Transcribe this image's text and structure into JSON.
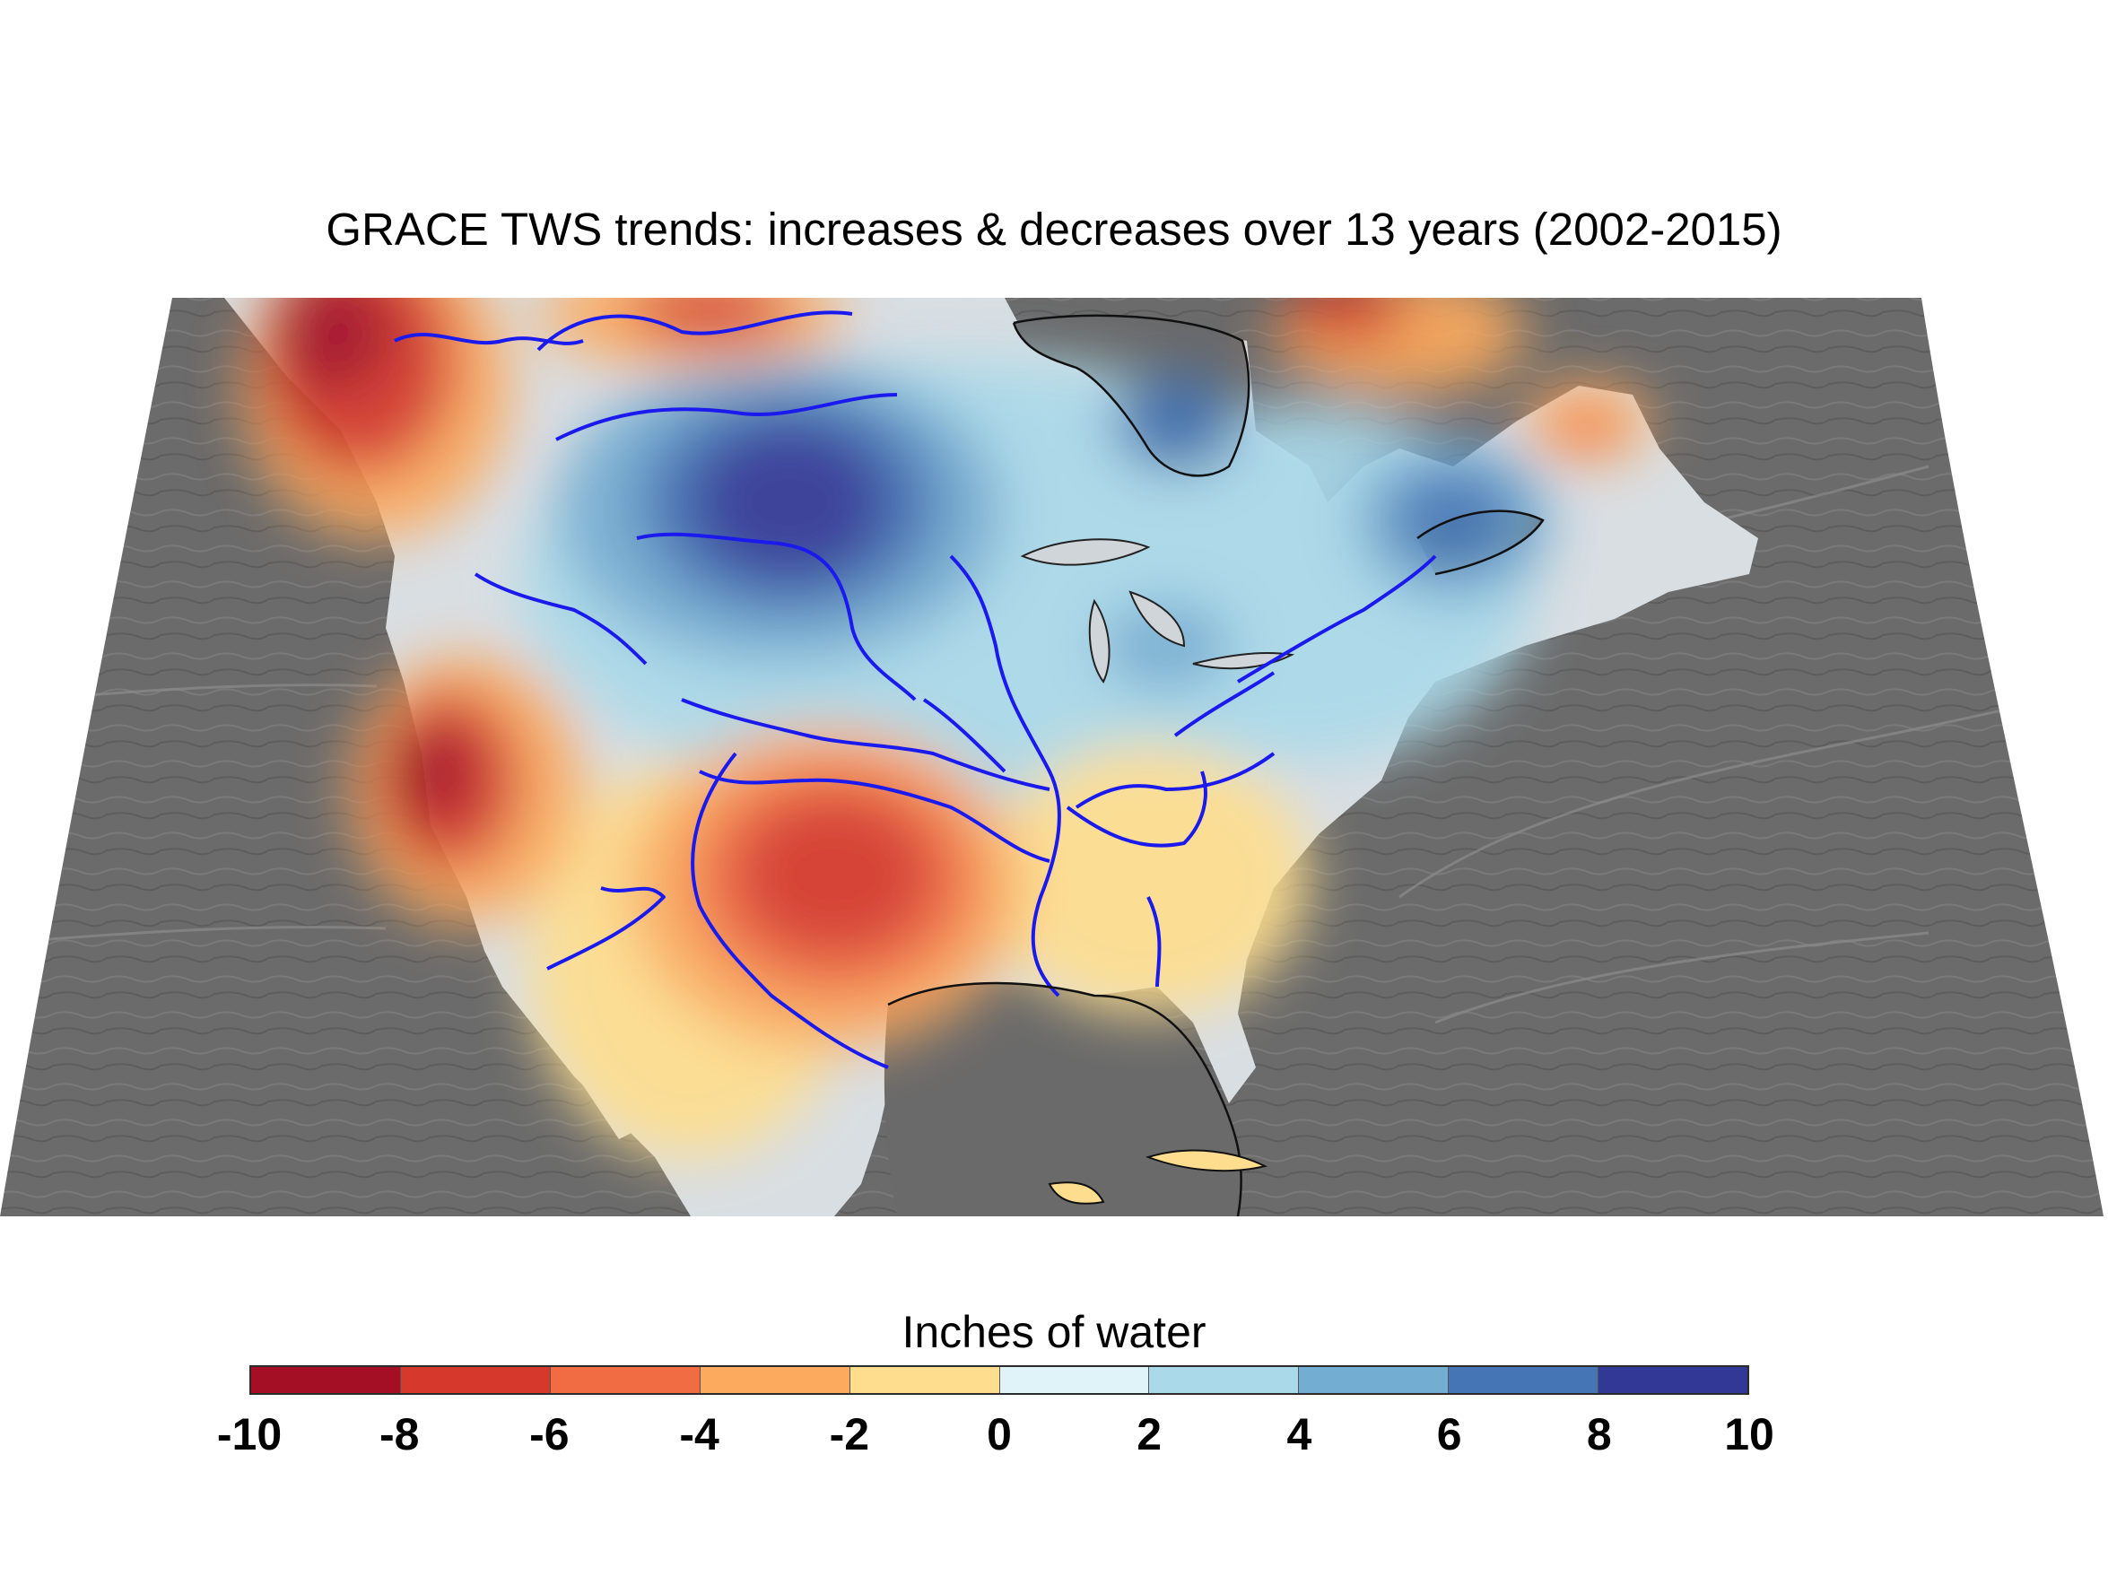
{
  "title": "GRACE TWS trends: increases & decreases over 13 years (2002-2015)",
  "legend": {
    "title": "Inches of water",
    "tick_labels": [
      "-10",
      "-8",
      "-6",
      "-4",
      "-2",
      "0",
      "2",
      "4",
      "6",
      "8",
      "10"
    ],
    "bins": [
      {
        "from": -10,
        "to": -8,
        "color": "#a50f26"
      },
      {
        "from": -8,
        "to": -6,
        "color": "#d6392b"
      },
      {
        "from": -6,
        "to": -4,
        "color": "#f26c43"
      },
      {
        "from": -4,
        "to": -2,
        "color": "#fcaa5e"
      },
      {
        "from": -2,
        "to": 0,
        "color": "#fede8e"
      },
      {
        "from": 0,
        "to": 2,
        "color": "#e0f3f8"
      },
      {
        "from": 2,
        "to": 4,
        "color": "#aad9e9"
      },
      {
        "from": 4,
        "to": 6,
        "color": "#74add2"
      },
      {
        "from": 6,
        "to": 8,
        "color": "#4575b5"
      },
      {
        "from": 8,
        "to": 10,
        "color": "#313896"
      }
    ]
  },
  "map": {
    "region": "North America",
    "background_relief_color": "#6d6d6d",
    "river_color": "#1a1aee",
    "anomalies": [
      {
        "area": "Pacific Northwest / British Columbia",
        "trend": "decrease",
        "inches": -10
      },
      {
        "area": "California",
        "trend": "decrease",
        "inches": -10
      },
      {
        "area": "Texas / Oklahoma",
        "trend": "decrease",
        "inches": -8
      },
      {
        "area": "Northern Great Plains",
        "trend": "increase",
        "inches": 10
      },
      {
        "area": "Hudson Bay west",
        "trend": "increase",
        "inches": 6
      },
      {
        "area": "Quebec / St. Lawrence",
        "trend": "increase",
        "inches": 6
      },
      {
        "area": "Great Lakes",
        "trend": "increase",
        "inches": 4
      },
      {
        "area": "Southeast US",
        "trend": "decrease",
        "inches": -2
      },
      {
        "area": "Mexico",
        "trend": "decrease",
        "inches": -2
      }
    ]
  }
}
